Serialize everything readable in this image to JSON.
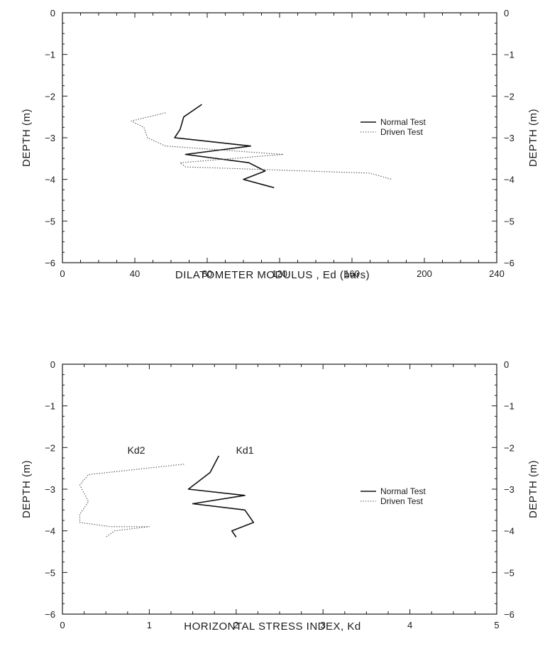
{
  "chart_data": [
    {
      "type": "line",
      "title": "",
      "xlabel": "DILATOMETER MODULUS , Ed (bars)",
      "ylabel": "DEPTH (m)",
      "ylabel_right": "DEPTH (m)",
      "xlim": [
        0,
        240
      ],
      "ylim": [
        -6,
        0
      ],
      "x_ticks": [
        0,
        40,
        80,
        120,
        160,
        200,
        240
      ],
      "y_ticks": [
        0,
        -1,
        -2,
        -3,
        -4,
        -5,
        -6
      ],
      "legend_position": "right",
      "series": [
        {
          "name": "Normal Test",
          "style": "solid",
          "points": [
            [
              77,
              -2.2
            ],
            [
              67,
              -2.5
            ],
            [
              65,
              -2.8
            ],
            [
              62,
              -3.0
            ],
            [
              104,
              -3.2
            ],
            [
              68,
              -3.4
            ],
            [
              103,
              -3.6
            ],
            [
              112,
              -3.8
            ],
            [
              100,
              -4.0
            ],
            [
              117,
              -4.2
            ]
          ]
        },
        {
          "name": "Driven Test",
          "style": "dotted",
          "points": [
            [
              57,
              -2.4
            ],
            [
              38,
              -2.6
            ],
            [
              45,
              -2.75
            ],
            [
              47,
              -3.0
            ],
            [
              57,
              -3.2
            ],
            [
              122,
              -3.4
            ],
            [
              65,
              -3.6
            ],
            [
              68,
              -3.7
            ],
            [
              170,
              -3.85
            ],
            [
              182,
              -4.0
            ]
          ]
        }
      ],
      "annotations": []
    },
    {
      "type": "line",
      "title": "",
      "xlabel": "HORIZONTAL STRESS INDEX, Kd",
      "ylabel": "DEPTH (m)",
      "ylabel_right": "DEPTH (m)",
      "xlim": [
        0,
        5
      ],
      "ylim": [
        -6,
        0
      ],
      "x_ticks": [
        0,
        1,
        2,
        3,
        4,
        5
      ],
      "y_ticks": [
        0,
        -1,
        -2,
        -3,
        -4,
        -5,
        -6
      ],
      "legend_position": "right",
      "series": [
        {
          "name": "Normal Test",
          "style": "solid",
          "points": [
            [
              1.8,
              -2.2
            ],
            [
              1.7,
              -2.6
            ],
            [
              1.45,
              -3.0
            ],
            [
              2.1,
              -3.15
            ],
            [
              1.5,
              -3.35
            ],
            [
              2.1,
              -3.5
            ],
            [
              2.2,
              -3.8
            ],
            [
              1.95,
              -4.0
            ],
            [
              2.0,
              -4.15
            ]
          ]
        },
        {
          "name": "Driven Test",
          "style": "dotted",
          "points": [
            [
              1.4,
              -2.4
            ],
            [
              0.3,
              -2.65
            ],
            [
              0.2,
              -2.9
            ],
            [
              0.3,
              -3.3
            ],
            [
              0.2,
              -3.6
            ],
            [
              0.2,
              -3.8
            ],
            [
              0.55,
              -3.9
            ],
            [
              1.0,
              -3.9
            ],
            [
              0.6,
              -4.0
            ],
            [
              0.5,
              -4.15
            ]
          ]
        }
      ],
      "annotations": [
        {
          "text": "Kd2",
          "x": 0.85,
          "y": -2.15
        },
        {
          "text": "Kd1",
          "x": 2.1,
          "y": -2.15
        }
      ]
    }
  ]
}
